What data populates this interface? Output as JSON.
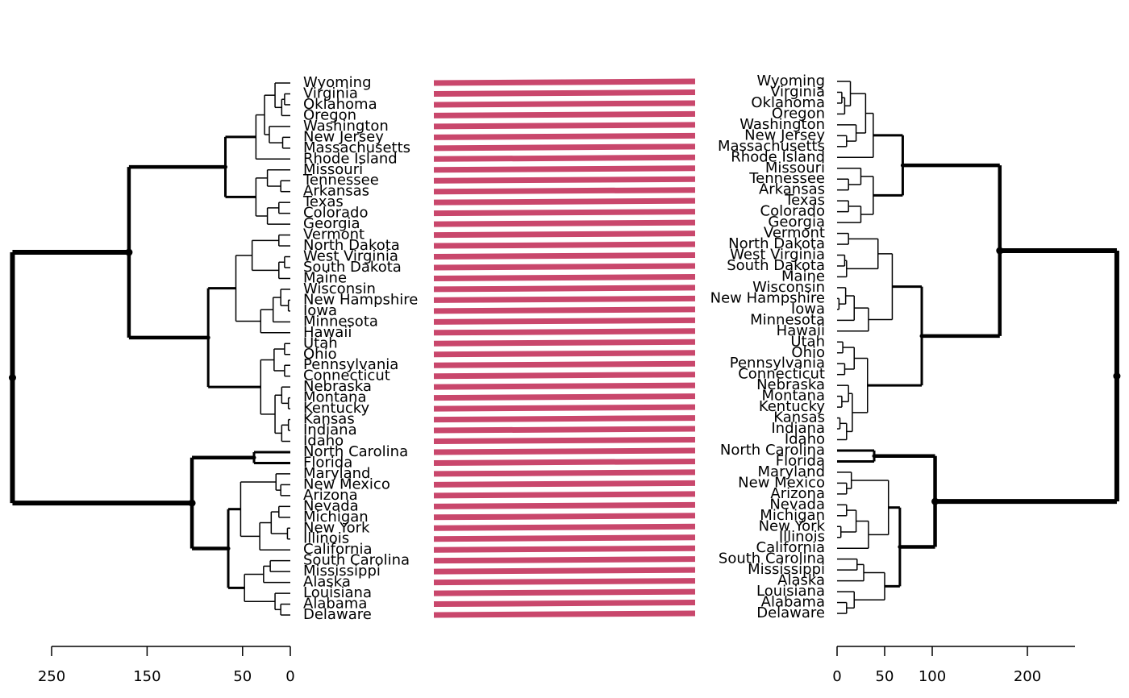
{
  "chart_data": {
    "type": "tanglegram",
    "labels": [
      "Wyoming",
      "Virginia",
      "Oklahoma",
      "Oregon",
      "Washington",
      "New Jersey",
      "Massachusetts",
      "Rhode Island",
      "Missouri",
      "Tennessee",
      "Arkansas",
      "Texas",
      "Colorado",
      "Georgia",
      "Vermont",
      "North Dakota",
      "West Virginia",
      "South Dakota",
      "Maine",
      "Wisconsin",
      "New Hampshire",
      "Iowa",
      "Minnesota",
      "Hawaii",
      "Utah",
      "Ohio",
      "Pennsylvania",
      "Connecticut",
      "Nebraska",
      "Montana",
      "Kentucky",
      "Kansas",
      "Indiana",
      "Idaho",
      "North Carolina",
      "Florida",
      "Maryland",
      "New Mexico",
      "Arizona",
      "Nevada",
      "Michigan",
      "New York",
      "Illinois",
      "California",
      "South Carolina",
      "Mississippi",
      "Alaska",
      "Louisiana",
      "Alabama",
      "Delaware"
    ],
    "left_tree": [
      291,
      [
        169,
        [
          68,
          [
            36,
            [
              27,
              [
                16,
                0,
                [
                  9,
                  [
                    6,
                    1,
                    2
                  ],
                  3
                ]
              ],
              [
                22,
                4,
                [
                  8,
                  5,
                  6
                ]
              ]
            ],
            7
          ],
          [
            36,
            [
              24,
              8,
              [
                10,
                9,
                10
              ]
            ],
            [
              24,
              [
                12,
                11,
                12
              ],
              13
            ]
          ]
        ],
        [
          86,
          [
            57,
            [
              40,
              [
                12,
                14,
                15
              ],
              [
                12,
                [
                  6,
                  16,
                  17
                ],
                18
              ]
            ],
            [
              31,
              [
                18,
                [
                  10,
                  19,
                  [
                    2,
                    20,
                    21
                  ]
                ],
                22
              ],
              23
            ]
          ],
          [
            31,
            [
              17,
              [
                6,
                24,
                25
              ],
              [
                6,
                26,
                27
              ]
            ],
            [
              16,
              [
                9,
                28,
                [
                  2,
                  29,
                  30
                ]
              ],
              [
                9,
                [
                  2,
                  31,
                  32
                ],
                33
              ]
            ]
          ]
        ]
      ],
      [
        103,
        [
          38,
          34,
          35
        ],
        [
          65,
          [
            52,
            [
              15,
              36,
              [
                10,
                37,
                38
              ]
            ],
            [
              32,
              [
                20,
                [
                  12,
                  39,
                  40
                ],
                [
                  3,
                  41,
                  42
                ]
              ],
              43
            ]
          ],
          [
            48,
            [
              28,
              [
                21,
                44,
                45
              ],
              46
            ],
            [
              16,
              47,
              [
                10,
                48,
                49
              ]
            ]
          ]
        ]
      ]
    ],
    "right_tree": [
      294,
      [
        171,
        [
          69,
          [
            38,
            [
              30,
              [
                14,
                0,
                [
                  8,
                  [
                    5,
                    1,
                    2
                  ],
                  3
                ]
              ],
              [
                20,
                4,
                [
                  10,
                  5,
                  6
                ]
              ]
            ],
            7
          ],
          [
            38,
            [
              25,
              8,
              [
                12,
                9,
                10
              ]
            ],
            [
              25,
              [
                12,
                11,
                12
              ],
              13
            ]
          ]
        ],
        [
          89,
          [
            58,
            [
              43,
              [
                12,
                14,
                15
              ],
              [
                10,
                [
                  8,
                  16,
                  17
                ],
                18
              ]
            ],
            [
              33,
              [
                18,
                [
                  9,
                  19,
                  [
                    2,
                    20,
                    21
                  ]
                ],
                22
              ],
              23
            ]
          ],
          [
            32,
            [
              18,
              [
                6,
                24,
                25
              ],
              [
                8,
                26,
                27
              ]
            ],
            [
              16,
              [
                12,
                28,
                [
                  5,
                  29,
                  30
                ]
              ],
              [
                10,
                [
                  3,
                  31,
                  32
                ],
                33
              ]
            ]
          ]
        ]
      ],
      [
        103,
        [
          39,
          34,
          35
        ],
        [
          66,
          [
            54,
            [
              15,
              36,
              [
                10,
                37,
                38
              ]
            ],
            [
              33,
              [
                20,
                [
                  10,
                  39,
                  40
                ],
                [
                  4,
                  41,
                  42
                ]
              ],
              43
            ]
          ],
          [
            50,
            [
              28,
              [
                21,
                44,
                45
              ],
              46
            ],
            [
              18,
              47,
              [
                10,
                48,
                49
              ]
            ]
          ]
        ]
      ]
    ],
    "xlim": [
      0,
      250
    ],
    "xticks": [
      0,
      50,
      150,
      250
    ],
    "x2lim": [
      0,
      250
    ],
    "x2ticks": [
      0,
      50,
      100,
      200
    ],
    "connector_color": "#c9476c"
  }
}
